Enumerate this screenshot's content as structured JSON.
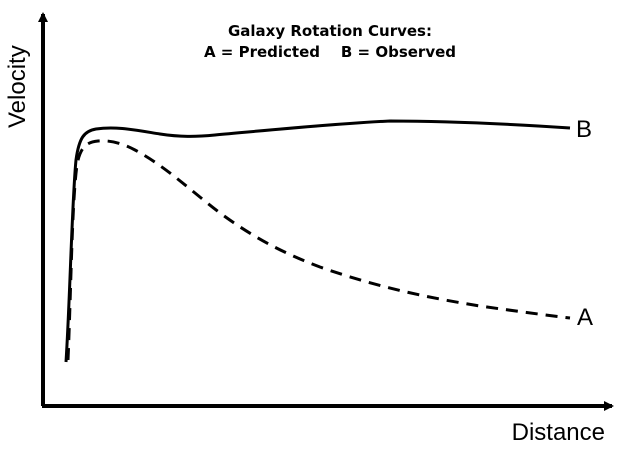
{
  "title": {
    "line1": "Galaxy Rotation Curves:",
    "line2": "A = Predicted    B = Observed"
  },
  "axes": {
    "x_label": "Distance",
    "y_label": "Velocity"
  },
  "curves": {
    "predicted": {
      "label": "A",
      "style": "dashed"
    },
    "observed": {
      "label": "B",
      "style": "solid"
    }
  },
  "colors": {
    "ink": "#000000",
    "background": "#ffffff"
  }
}
